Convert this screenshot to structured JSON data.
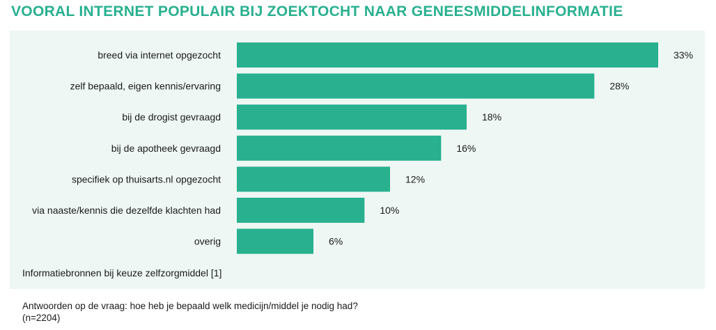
{
  "colors": {
    "accent": "#28b08f",
    "panel_bg": "#eef7f3",
    "text": "#1a1a1a"
  },
  "title": "VOORAL INTERNET POPULAIR BIJ ZOEKTOCHT NAAR GENEESMIDDELINFORMATIE",
  "chart_data": {
    "type": "bar",
    "orientation": "horizontal",
    "title": "VOORAL INTERNET POPULAIR BIJ ZOEKTOCHT NAAR GENEESMIDDELINFORMATIE",
    "caption": "Informatiebronnen bij keuze zelfzorgmiddel [1]",
    "categories": [
      "breed via internet opgezocht",
      "zelf bepaald, eigen kennis/ervaring",
      "bij de drogist gevraagd",
      "bij de apotheek gevraagd",
      "specifiek op thuisarts.nl opgezocht",
      "via naaste/kennis die dezelfde klachten had",
      "overig"
    ],
    "values": [
      33,
      28,
      18,
      16,
      12,
      10,
      6
    ],
    "value_labels": [
      "33%",
      "28%",
      "18%",
      "16%",
      "12%",
      "10%",
      "6%"
    ],
    "unit": "%",
    "xlim": [
      0,
      33
    ],
    "grid": false,
    "legend": "none"
  },
  "footnote": "Antwoorden op de vraag: hoe heb je bepaald welk medicijn/middel je nodig had? (n=2204)"
}
